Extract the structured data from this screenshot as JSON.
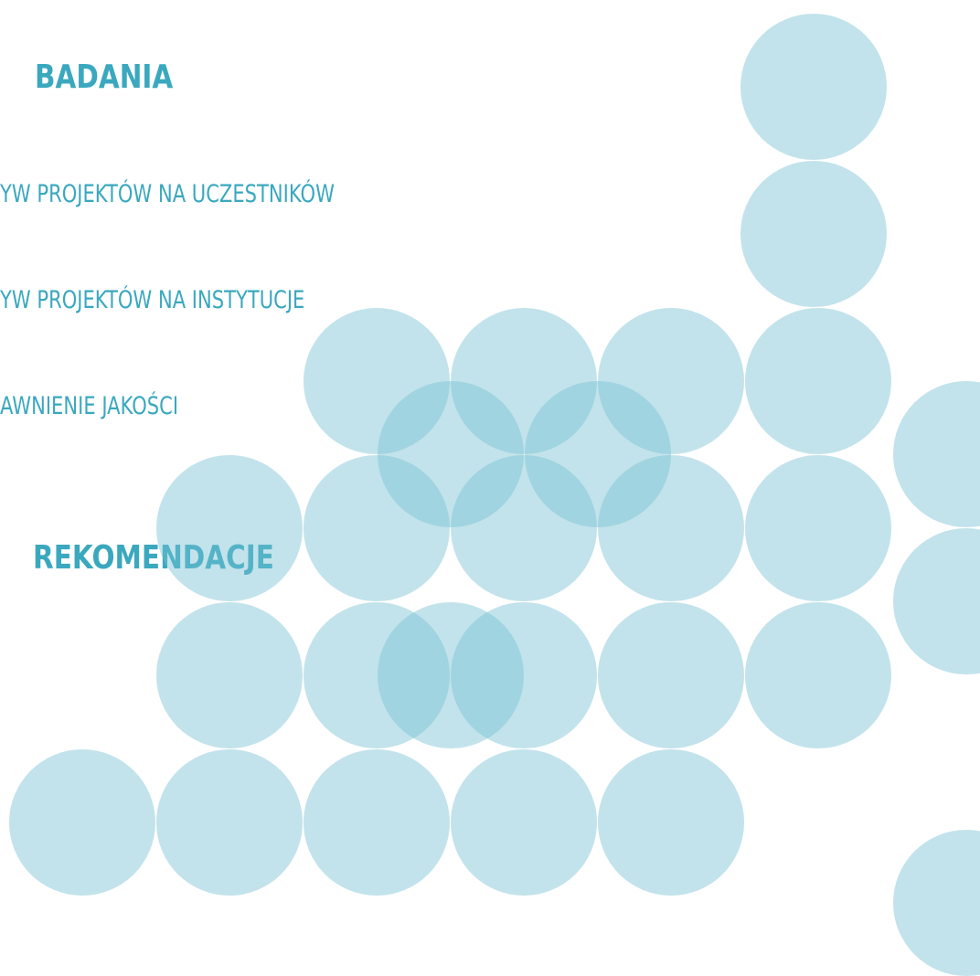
{
  "sections": [
    {
      "title": "BADANIA",
      "items": [
        "YW PROJEKTÓW NA UCZESTNIKÓW",
        "YW PROJEKTÓW NA INSTYTUCJE",
        "AWNIENIE JAKOŚCI"
      ]
    },
    {
      "title": "REKOMENDACJE",
      "items": []
    }
  ]
}
